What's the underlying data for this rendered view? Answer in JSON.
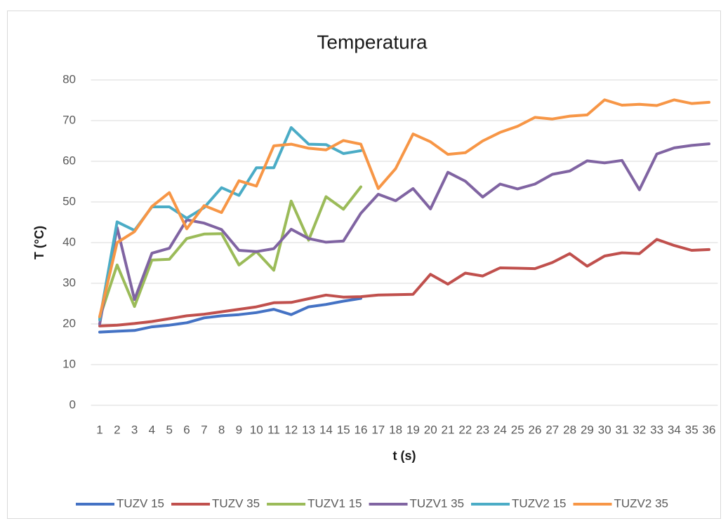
{
  "chart_data": {
    "type": "line",
    "title": "Temperatura",
    "x_label": "t (s)",
    "y_label": "T (°C)",
    "categories": [
      1,
      2,
      3,
      4,
      5,
      6,
      7,
      8,
      9,
      10,
      11,
      12,
      13,
      14,
      15,
      16,
      17,
      18,
      19,
      20,
      21,
      22,
      23,
      24,
      25,
      26,
      27,
      28,
      29,
      30,
      31,
      32,
      33,
      34,
      35,
      36
    ],
    "ylim": [
      0,
      80
    ],
    "yticks": [
      0,
      10,
      20,
      30,
      40,
      50,
      60,
      70,
      80
    ],
    "grid": true,
    "legend": "bottom",
    "series": [
      {
        "name": "TUZV 15",
        "color": "#4472c4",
        "values": [
          18,
          18.2,
          18.4,
          19.3,
          19.7,
          20.3,
          21.5,
          22,
          22.3,
          22.8,
          23.6,
          22.3,
          24.2,
          24.8,
          25.6,
          26.3,
          null,
          null,
          null,
          null,
          null,
          null,
          null,
          null,
          null,
          null,
          null,
          null,
          null,
          null,
          null,
          null,
          null,
          null,
          null,
          null
        ]
      },
      {
        "name": "TUZV 35",
        "color": "#c0504d",
        "values": [
          19.5,
          19.7,
          20.1,
          20.6,
          21.3,
          22,
          22.4,
          23,
          23.6,
          24.2,
          25.2,
          25.3,
          26.2,
          27.1,
          26.6,
          26.7,
          27.1,
          27.2,
          27.3,
          32.2,
          29.8,
          32.5,
          31.8,
          33.8,
          33.7,
          33.6,
          35.1,
          37.3,
          34.2,
          36.7,
          37.5,
          37.3,
          40.8,
          39.3,
          38.1,
          38.3
        ]
      },
      {
        "name": "TUZV1 15",
        "color": "#9bbb59",
        "values": [
          21.5,
          34.5,
          24.3,
          35.7,
          35.9,
          41,
          42.1,
          42.2,
          34.5,
          37.8,
          33.2,
          50.2,
          40.6,
          51.3,
          48.2,
          53.7,
          null,
          null,
          null,
          null,
          null,
          null,
          null,
          null,
          null,
          null,
          null,
          null,
          null,
          null,
          null,
          null,
          null,
          null,
          null,
          null
        ]
      },
      {
        "name": "TUZV1 35",
        "color": "#8064a2",
        "values": [
          20,
          43.7,
          26,
          37.4,
          38.6,
          45.6,
          44.8,
          43.2,
          38.1,
          37.8,
          38.5,
          43.3,
          41,
          40.1,
          40.4,
          47.2,
          51.9,
          50.3,
          53.3,
          48.3,
          57.3,
          55.1,
          51.2,
          54.4,
          53.2,
          54.4,
          56.8,
          57.6,
          60.1,
          59.6,
          60.2,
          53,
          61.8,
          63.3,
          63.9,
          64.3
        ]
      },
      {
        "name": "TUZV2 15",
        "color": "#4bacc6",
        "values": [
          21,
          45.1,
          43,
          48.8,
          48.8,
          46,
          48.6,
          53.5,
          51.6,
          58.4,
          58.4,
          68.3,
          64.2,
          64.1,
          61.9,
          62.6,
          null,
          null,
          null,
          null,
          null,
          null,
          null,
          null,
          null,
          null,
          null,
          null,
          null,
          null,
          null,
          null,
          null,
          null,
          null,
          null
        ]
      },
      {
        "name": "TUZV2 35",
        "color": "#f79646",
        "values": [
          21.8,
          40,
          42.7,
          48.9,
          52.3,
          43.4,
          49.1,
          47.4,
          55.2,
          53.9,
          63.8,
          64.2,
          63.2,
          62.8,
          65.1,
          64.2,
          53.3,
          58.2,
          66.7,
          64.8,
          61.7,
          62.1,
          65,
          67.1,
          68.6,
          70.8,
          70.4,
          71.1,
          71.4,
          75.1,
          73.8,
          74,
          73.7,
          75.1,
          74.2,
          74.5
        ]
      }
    ]
  }
}
